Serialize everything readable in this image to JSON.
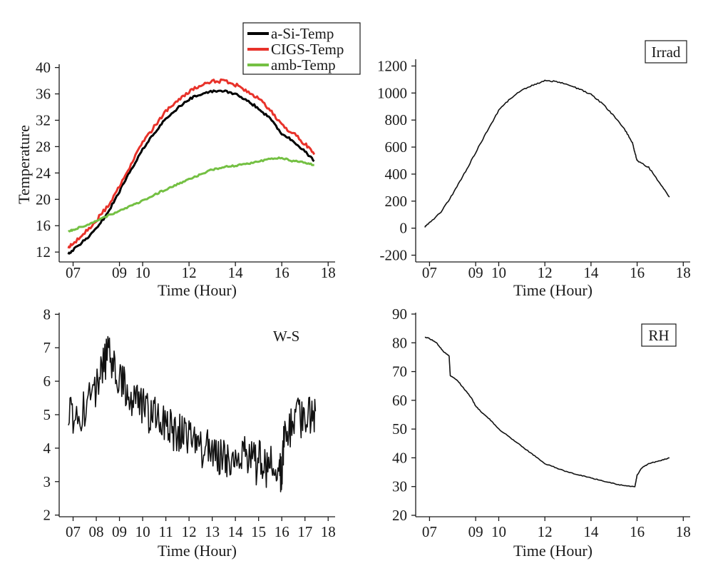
{
  "chart_data": [
    {
      "type": "line",
      "xlabel": "Time (Hour)",
      "ylabel": "Temperature",
      "xlim": [
        6.4,
        18.3
      ],
      "ylim": [
        10.5,
        40.5
      ],
      "x_ticks": [
        7,
        9,
        10,
        12,
        14,
        16,
        18
      ],
      "x_tick_labels": [
        "07",
        "09",
        "10",
        "12",
        "14",
        "16",
        "18"
      ],
      "y_ticks": [
        12,
        16,
        20,
        24,
        28,
        32,
        36,
        40
      ],
      "y_tick_labels": [
        "12",
        "16",
        "20",
        "24",
        "28",
        "32",
        "36",
        "40"
      ],
      "legend": {
        "placement": "top-right",
        "entries": [
          "a-Si-Temp",
          "CIGS-Temp",
          "amb-Temp"
        ]
      },
      "series": [
        {
          "name": "a-Si-Temp",
          "color": "#000000",
          "x": [
            6.8,
            7.0,
            7.5,
            8.0,
            8.5,
            9.0,
            9.5,
            10.0,
            10.5,
            11.0,
            11.5,
            12.0,
            12.5,
            13.0,
            13.5,
            14.0,
            14.5,
            15.0,
            15.5,
            16.0,
            16.5,
            17.0,
            17.4
          ],
          "y": [
            11.8,
            12.3,
            13.8,
            15.5,
            18.0,
            21.2,
            24.5,
            27.6,
            30.0,
            32.2,
            33.8,
            35.2,
            36.0,
            36.4,
            36.5,
            36.0,
            35.0,
            33.8,
            32.2,
            30.0,
            28.8,
            27.3,
            25.8
          ]
        },
        {
          "name": "CIGS-Temp",
          "color": "#e8322a",
          "x": [
            6.8,
            7.0,
            7.5,
            8.0,
            8.5,
            9.0,
            9.5,
            10.0,
            10.5,
            11.0,
            11.5,
            12.0,
            12.5,
            13.0,
            13.5,
            14.0,
            14.5,
            15.0,
            15.5,
            16.0,
            16.5,
            17.0,
            17.4
          ],
          "y": [
            12.8,
            13.3,
            14.9,
            16.8,
            19.0,
            22.0,
            25.3,
            28.6,
            31.0,
            33.3,
            35.0,
            36.4,
            37.3,
            37.9,
            38.0,
            37.4,
            36.5,
            35.2,
            33.6,
            31.3,
            30.0,
            28.4,
            26.8
          ]
        },
        {
          "name": "amb-Temp",
          "color": "#74c043",
          "x": [
            6.8,
            7.0,
            7.5,
            8.0,
            8.5,
            9.0,
            9.5,
            10.0,
            10.5,
            11.0,
            11.5,
            12.0,
            12.5,
            13.0,
            13.5,
            14.0,
            14.5,
            15.0,
            15.5,
            16.0,
            16.5,
            17.0,
            17.4
          ],
          "y": [
            15.2,
            15.4,
            16.0,
            16.7,
            17.5,
            18.3,
            19.0,
            19.8,
            20.7,
            21.5,
            22.3,
            23.0,
            23.8,
            24.5,
            24.9,
            25.1,
            25.4,
            25.8,
            26.1,
            26.3,
            25.8,
            25.6,
            25.2
          ]
        }
      ]
    },
    {
      "type": "line",
      "xlabel": "Time (Hour)",
      "ylabel": "",
      "xlim": [
        6.4,
        18.3
      ],
      "ylim": [
        -250,
        1250
      ],
      "x_ticks": [
        7,
        9,
        10,
        12,
        14,
        16,
        18
      ],
      "x_tick_labels": [
        "07",
        "09",
        "10",
        "12",
        "14",
        "16",
        "18"
      ],
      "y_ticks": [
        -200,
        0,
        200,
        400,
        600,
        800,
        1000,
        1200
      ],
      "y_tick_labels": [
        "-200",
        "0",
        "200",
        "400",
        "600",
        "800",
        "1000",
        "1200"
      ],
      "box_label": "Irrad",
      "series": [
        {
          "color": "#111111",
          "x": [
            6.8,
            7.0,
            7.5,
            8.0,
            8.5,
            9.0,
            9.5,
            10.0,
            10.5,
            11.0,
            11.5,
            12.0,
            12.5,
            13.0,
            13.5,
            14.0,
            14.5,
            15.0,
            15.5,
            15.8,
            15.9,
            16.0,
            16.5,
            17.0,
            17.4
          ],
          "y": [
            10,
            40,
            120,
            250,
            400,
            560,
            720,
            870,
            960,
            1020,
            1060,
            1090,
            1085,
            1060,
            1030,
            990,
            920,
            830,
            720,
            630,
            560,
            500,
            450,
            330,
            230
          ]
        }
      ]
    },
    {
      "type": "line",
      "xlabel": "Time (Hour)",
      "ylabel": "",
      "xlim": [
        6.4,
        18.3
      ],
      "ylim": [
        1.95,
        8.05
      ],
      "x_ticks": [
        7,
        8,
        9,
        10,
        11,
        12,
        13,
        14,
        15,
        16,
        17,
        18
      ],
      "x_tick_labels": [
        "07",
        "08",
        "09",
        "10",
        "11",
        "12",
        "13",
        "14",
        "15",
        "16",
        "17",
        "18"
      ],
      "y_ticks": [
        2,
        3,
        4,
        5,
        6,
        7,
        8
      ],
      "y_tick_labels": [
        "2",
        "3",
        "4",
        "5",
        "6",
        "7",
        "8"
      ],
      "text_label": "W-S",
      "series": [
        {
          "color": "#111111",
          "x": [
            6.8,
            7.0,
            7.3,
            7.6,
            7.9,
            8.1,
            8.3,
            8.5,
            8.7,
            8.9,
            9.1,
            9.3,
            9.5,
            9.7,
            9.9,
            10.1,
            10.3,
            10.5,
            10.7,
            10.9,
            11.1,
            11.3,
            11.5,
            11.7,
            11.9,
            12.1,
            12.3,
            12.5,
            12.7,
            12.9,
            13.1,
            13.3,
            13.5,
            13.7,
            13.9,
            14.1,
            14.3,
            14.5,
            14.7,
            14.9,
            15.1,
            15.3,
            15.5,
            15.7,
            15.9,
            16.0,
            16.1,
            16.3,
            16.5,
            16.7,
            16.9,
            17.1,
            17.3,
            17.45
          ],
          "y": [
            5.2,
            5.0,
            4.9,
            5.4,
            5.5,
            5.9,
            6.4,
            6.8,
            6.5,
            6.3,
            6.0,
            5.8,
            5.5,
            5.7,
            5.2,
            5.3,
            4.9,
            5.2,
            4.8,
            4.7,
            4.8,
            4.3,
            4.5,
            4.5,
            4.2,
            4.4,
            3.9,
            4.1,
            3.8,
            4.2,
            3.9,
            3.6,
            4.0,
            3.5,
            3.7,
            3.4,
            3.9,
            3.6,
            3.8,
            3.5,
            3.7,
            3.3,
            3.8,
            3.4,
            3.6,
            3.0,
            4.5,
            4.6,
            4.7,
            4.9,
            4.8,
            5.0,
            4.9,
            5.1
          ]
        }
      ]
    },
    {
      "type": "line",
      "xlabel": "Time (Hour)",
      "ylabel": "",
      "xlim": [
        6.4,
        18.3
      ],
      "ylim": [
        19.5,
        90.5
      ],
      "x_ticks": [
        7,
        9,
        10,
        12,
        14,
        16,
        18
      ],
      "x_tick_labels": [
        "07",
        "09",
        "10",
        "12",
        "14",
        "16",
        "18"
      ],
      "y_ticks": [
        20,
        30,
        40,
        50,
        60,
        70,
        80,
        90
      ],
      "y_tick_labels": [
        "20",
        "30",
        "40",
        "50",
        "60",
        "70",
        "80",
        "90"
      ],
      "box_label": "RH",
      "series": [
        {
          "color": "#111111",
          "x": [
            6.8,
            7.0,
            7.3,
            7.6,
            7.85,
            7.9,
            8.2,
            8.5,
            8.8,
            9.0,
            9.3,
            9.6,
            10.0,
            10.5,
            11.0,
            11.5,
            12.0,
            12.5,
            13.0,
            13.5,
            14.0,
            14.5,
            15.0,
            15.5,
            15.9,
            16.0,
            16.2,
            16.5,
            17.0,
            17.4
          ],
          "y": [
            82,
            81.5,
            80,
            77,
            75.5,
            68.5,
            67,
            64,
            61,
            58,
            55.5,
            53.5,
            50,
            47,
            44,
            41,
            38,
            36.5,
            35,
            34,
            33,
            32,
            31,
            30.2,
            30,
            34,
            36.5,
            38,
            39,
            40
          ]
        }
      ]
    }
  ]
}
